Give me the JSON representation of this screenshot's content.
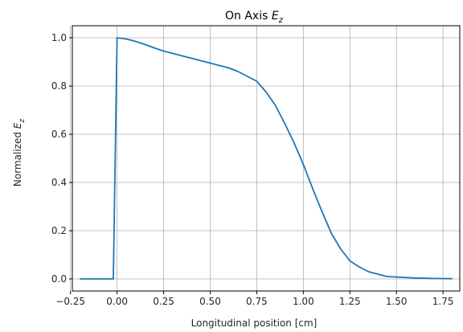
{
  "chart_data": {
    "type": "line",
    "title_prefix": "On Axis ",
    "title_math": "E",
    "title_math_sub": "z",
    "xlabel": "Longitudinal position [cm]",
    "ylabel_prefix": "Normalized ",
    "ylabel_math": "E",
    "ylabel_math_sub": "z",
    "xlim": [
      -0.24,
      1.84
    ],
    "ylim": [
      -0.05,
      1.05
    ],
    "xticks": [
      -0.25,
      0.0,
      0.25,
      0.5,
      0.75,
      1.0,
      1.25,
      1.5,
      1.75
    ],
    "xtick_labels": [
      "−0.25",
      "0.00",
      "0.25",
      "0.50",
      "0.75",
      "1.00",
      "1.25",
      "1.50",
      "1.75"
    ],
    "yticks": [
      0.0,
      0.2,
      0.4,
      0.6,
      0.8,
      1.0
    ],
    "ytick_labels": [
      "0.0",
      "0.2",
      "0.4",
      "0.6",
      "0.8",
      "1.0"
    ],
    "grid": true,
    "series": [
      {
        "color": "#1f77b4",
        "x": [
          -0.2,
          -0.02,
          0.0,
          0.05,
          0.1,
          0.15,
          0.2,
          0.25,
          0.3,
          0.4,
          0.5,
          0.6,
          0.65,
          0.7,
          0.75,
          0.8,
          0.85,
          0.9,
          0.95,
          1.0,
          1.05,
          1.1,
          1.15,
          1.2,
          1.25,
          1.3,
          1.35,
          1.4,
          1.45,
          1.5,
          1.6,
          1.7,
          1.8
        ],
        "y": [
          0.0,
          0.0,
          1.0,
          0.995,
          0.985,
          0.972,
          0.958,
          0.945,
          0.935,
          0.915,
          0.895,
          0.875,
          0.86,
          0.84,
          0.82,
          0.775,
          0.72,
          0.645,
          0.565,
          0.475,
          0.375,
          0.28,
          0.19,
          0.125,
          0.075,
          0.05,
          0.03,
          0.02,
          0.01,
          0.008,
          0.004,
          0.002,
          0.001
        ]
      }
    ]
  }
}
